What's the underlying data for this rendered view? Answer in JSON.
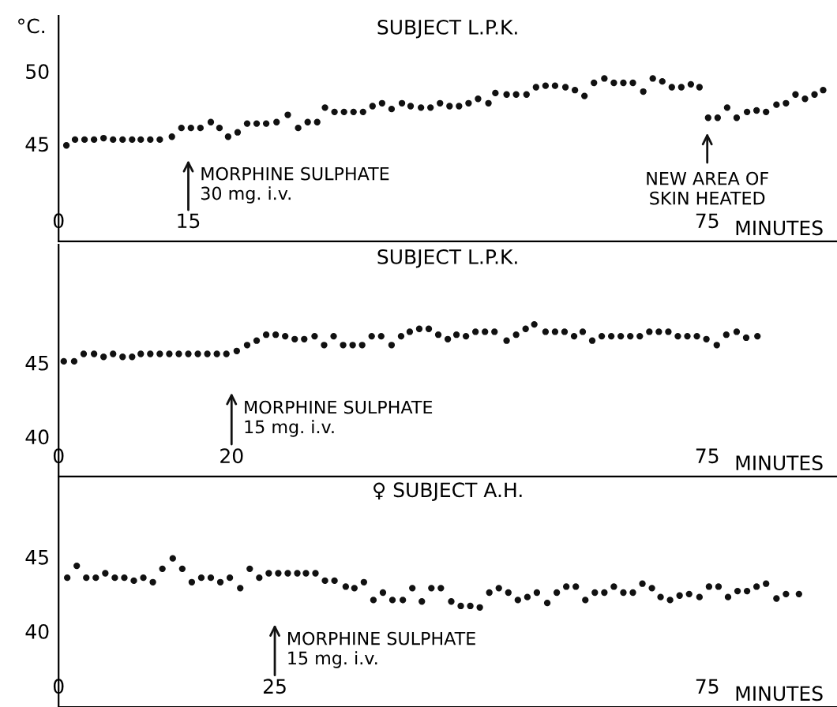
{
  "chart_data": [
    {
      "type": "scatter",
      "title": "SUBJECT L.P.K.",
      "ylabel": "°C.",
      "xlabel": "MINUTES",
      "color": "#111111",
      "marker": "circle",
      "xlim": [
        0,
        90
      ],
      "ylim": [
        38.3,
        53.8
      ],
      "xticks": [
        0,
        15,
        75
      ],
      "yticks": [
        45,
        50
      ],
      "annotations": [
        "MORPHINE SULPHATE\n30 mg. i.v.",
        "NEW AREA OF\nSKIN HEATED"
      ],
      "x": [
        0.9,
        1.9,
        3.0,
        4.1,
        5.2,
        6.3,
        7.4,
        8.5,
        9.5,
        10.6,
        11.7,
        13.1,
        14.2,
        15.3,
        16.4,
        17.6,
        18.6,
        19.6,
        20.7,
        21.8,
        22.9,
        24.0,
        25.2,
        26.5,
        27.7,
        28.8,
        29.9,
        30.8,
        31.9,
        33.0,
        34.1,
        35.2,
        36.3,
        37.4,
        38.5,
        39.7,
        40.7,
        41.9,
        43.0,
        44.1,
        45.2,
        46.3,
        47.4,
        48.5,
        49.7,
        50.5,
        51.8,
        52.9,
        54.1,
        55.2,
        56.3,
        57.4,
        58.6,
        59.7,
        60.8,
        61.9,
        63.1,
        64.2,
        65.3,
        66.4,
        67.6,
        68.7,
        69.8,
        70.9,
        72.0,
        73.1,
        74.1,
        75.1,
        76.2,
        77.3,
        78.4,
        79.6,
        80.7,
        81.8,
        83.0,
        84.1,
        85.2,
        86.3,
        87.4,
        88.4
      ],
      "values": [
        44.9,
        45.3,
        45.3,
        45.3,
        45.4,
        45.3,
        45.3,
        45.3,
        45.3,
        45.3,
        45.3,
        45.5,
        46.1,
        46.1,
        46.1,
        46.5,
        46.1,
        45.5,
        45.8,
        46.4,
        46.4,
        46.4,
        46.5,
        47.0,
        46.1,
        46.5,
        46.5,
        47.5,
        47.2,
        47.2,
        47.2,
        47.2,
        47.6,
        47.8,
        47.4,
        47.8,
        47.6,
        47.5,
        47.5,
        47.8,
        47.6,
        47.6,
        47.8,
        48.1,
        47.8,
        48.5,
        48.4,
        48.4,
        48.4,
        48.9,
        49.0,
        49.0,
        48.9,
        48.7,
        48.3,
        49.2,
        49.5,
        49.2,
        49.2,
        49.2,
        48.6,
        49.5,
        49.3,
        48.9,
        48.9,
        49.1,
        48.9,
        46.8,
        46.8,
        47.5,
        46.8,
        47.2,
        47.3,
        47.2,
        47.7,
        47.8,
        48.4,
        48.1,
        48.4,
        48.7
      ]
    },
    {
      "type": "scatter",
      "title": "SUBJECT L.P.K.",
      "xlabel": "MINUTES",
      "color": "#111111",
      "marker": "circle",
      "xlim": [
        0,
        90
      ],
      "ylim": [
        37.3,
        53.0
      ],
      "xticks": [
        0,
        20,
        75
      ],
      "yticks": [
        40,
        45
      ],
      "annotations": [
        "MORPHINE SULPHATE\n15 mg. i.v."
      ],
      "x": [
        0.6,
        1.8,
        2.9,
        4.1,
        5.2,
        6.3,
        7.4,
        8.5,
        9.5,
        10.6,
        11.7,
        12.8,
        13.9,
        15.0,
        16.1,
        17.2,
        18.3,
        19.4,
        20.6,
        21.8,
        22.9,
        24.0,
        25.1,
        26.2,
        27.3,
        28.4,
        29.6,
        30.7,
        31.8,
        32.9,
        34.0,
        35.1,
        36.2,
        37.3,
        38.5,
        39.6,
        40.6,
        41.7,
        42.8,
        43.9,
        45.0,
        46.0,
        47.1,
        48.2,
        49.3,
        50.4,
        51.8,
        52.9,
        54.0,
        55.0,
        56.3,
        57.4,
        58.5,
        59.6,
        60.6,
        61.7,
        62.8,
        63.9,
        65.0,
        66.1,
        67.2,
        68.3,
        69.4,
        70.5,
        71.6,
        72.7,
        73.8,
        74.9,
        76.1,
        77.2,
        78.4,
        79.5,
        80.8
      ],
      "values": [
        45.1,
        45.1,
        45.6,
        45.6,
        45.4,
        45.6,
        45.4,
        45.4,
        45.6,
        45.6,
        45.6,
        45.6,
        45.6,
        45.6,
        45.6,
        45.6,
        45.6,
        45.6,
        45.8,
        46.2,
        46.5,
        46.9,
        46.9,
        46.8,
        46.6,
        46.6,
        46.8,
        46.2,
        46.8,
        46.2,
        46.2,
        46.2,
        46.8,
        46.8,
        46.2,
        46.8,
        47.1,
        47.3,
        47.3,
        46.9,
        46.6,
        46.9,
        46.8,
        47.1,
        47.1,
        47.1,
        46.5,
        46.9,
        47.3,
        47.6,
        47.1,
        47.1,
        47.1,
        46.8,
        47.1,
        46.5,
        46.8,
        46.8,
        46.8,
        46.8,
        46.8,
        47.1,
        47.1,
        47.1,
        46.8,
        46.8,
        46.8,
        46.6,
        46.2,
        46.9,
        47.1,
        46.7,
        46.8
      ]
    },
    {
      "type": "scatter",
      "title": "♀ SUBJECT A.H.",
      "xlabel": "MINUTES",
      "color": "#111111",
      "marker": "circle",
      "xlim": [
        0,
        90
      ],
      "ylim": [
        34.9,
        50.3
      ],
      "xticks": [
        0,
        25,
        75
      ],
      "yticks": [
        40,
        45
      ],
      "annotations": [
        "MORPHINE SULPHATE\n15 mg. i.v."
      ],
      "x": [
        1.0,
        2.1,
        3.2,
        4.3,
        5.4,
        6.5,
        7.6,
        8.7,
        9.8,
        10.9,
        12.0,
        13.2,
        14.3,
        15.4,
        16.5,
        17.6,
        18.7,
        19.8,
        21.0,
        22.1,
        23.2,
        24.3,
        25.4,
        26.5,
        27.6,
        28.6,
        29.7,
        30.8,
        31.9,
        33.2,
        34.2,
        35.3,
        36.4,
        37.5,
        38.6,
        39.8,
        40.9,
        42.0,
        43.1,
        44.2,
        45.4,
        46.5,
        47.6,
        48.7,
        49.8,
        50.9,
        52.0,
        53.1,
        54.2,
        55.3,
        56.5,
        57.6,
        58.7,
        59.8,
        60.9,
        62.0,
        63.1,
        64.2,
        65.3,
        66.4,
        67.5,
        68.6,
        69.6,
        70.7,
        71.8,
        72.9,
        74.1,
        75.2,
        76.3,
        77.4,
        78.5,
        79.6,
        80.7,
        81.8,
        83.0,
        84.1,
        85.6
      ],
      "values": [
        43.6,
        44.4,
        43.6,
        43.6,
        43.9,
        43.6,
        43.6,
        43.4,
        43.6,
        43.3,
        44.2,
        44.9,
        44.2,
        43.3,
        43.6,
        43.6,
        43.3,
        43.6,
        42.9,
        44.2,
        43.6,
        43.9,
        43.9,
        43.9,
        43.9,
        43.9,
        43.9,
        43.4,
        43.4,
        43.0,
        42.9,
        43.3,
        42.1,
        42.6,
        42.1,
        42.1,
        42.9,
        42.0,
        42.9,
        42.9,
        42.0,
        41.7,
        41.7,
        41.6,
        42.6,
        42.9,
        42.6,
        42.1,
        42.3,
        42.6,
        41.9,
        42.6,
        43.0,
        43.0,
        42.1,
        42.6,
        42.6,
        43.0,
        42.6,
        42.6,
        43.2,
        42.9,
        42.3,
        42.1,
        42.4,
        42.5,
        42.3,
        43.0,
        43.0,
        42.3,
        42.7,
        42.7,
        43.0,
        43.2,
        42.2,
        42.5,
        42.5
      ]
    }
  ]
}
